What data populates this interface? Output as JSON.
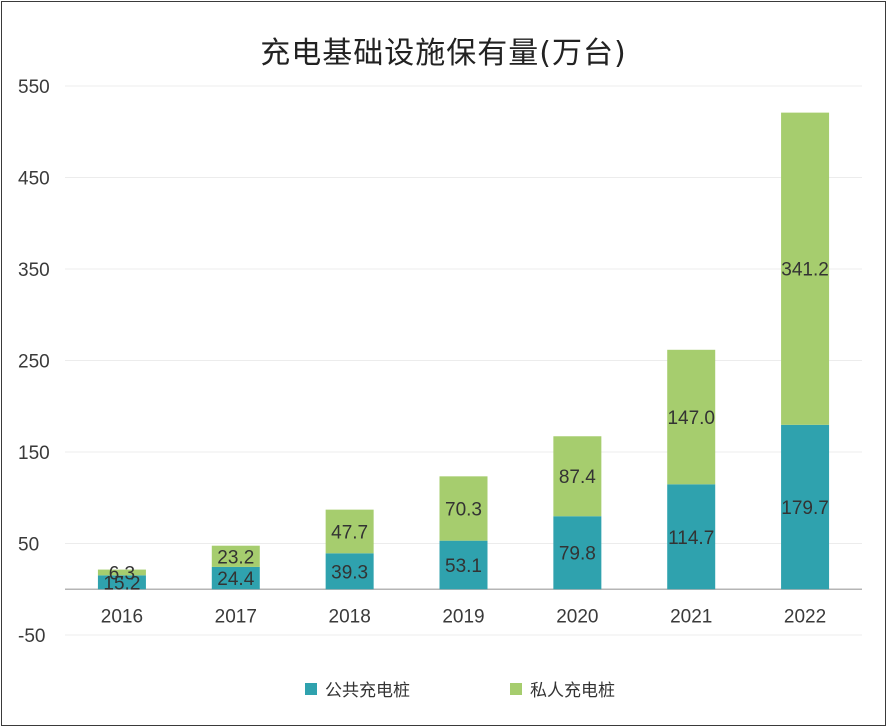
{
  "chart_data": {
    "type": "bar",
    "stacked": true,
    "title": "充电基础设施保有量(万台)",
    "categories": [
      "2016",
      "2017",
      "2018",
      "2019",
      "2020",
      "2021",
      "2022"
    ],
    "series": [
      {
        "name": "公共充电桩",
        "color": "#2fa2ae",
        "values": [
          15.2,
          24.4,
          39.3,
          53.1,
          79.8,
          114.7,
          179.7
        ]
      },
      {
        "name": "私人充电桩",
        "color": "#a6cd6e",
        "values": [
          6.3,
          23.2,
          47.7,
          70.3,
          87.4,
          147.0,
          341.2
        ]
      }
    ],
    "yticks": [
      "550",
      "450",
      "350",
      "250",
      "150",
      "50",
      "-50"
    ],
    "ylim": [
      -50,
      550
    ],
    "grid": true,
    "legend": "bottom"
  }
}
